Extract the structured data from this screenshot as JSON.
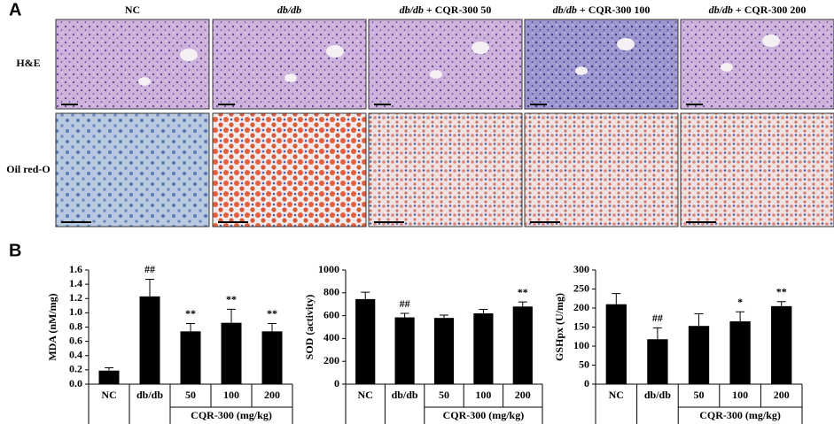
{
  "panels": {
    "a": "A",
    "b": "B"
  },
  "histology": {
    "columns": [
      [
        {
          "text": "NC",
          "italic": false
        }
      ],
      [
        {
          "text": "db/db",
          "italic": true
        }
      ],
      [
        {
          "text": "db/db",
          "italic": true
        },
        {
          "text": " + CQR-300 50",
          "italic": false
        }
      ],
      [
        {
          "text": "db/db",
          "italic": true
        },
        {
          "text": " + CQR-300 100",
          "italic": false
        }
      ],
      [
        {
          "text": "db/db",
          "italic": true
        },
        {
          "text": " + CQR-300 200",
          "italic": false
        }
      ]
    ],
    "rows": [
      "H&E",
      "Oil red-O"
    ]
  },
  "chart_data": [
    {
      "type": "bar",
      "y_label": "MDA (nM/mg)",
      "categories": [
        "NC",
        "db/db",
        "50",
        "100",
        "200"
      ],
      "group_label": "CQR-300 (mg/kg)",
      "values": [
        0.19,
        1.23,
        0.74,
        0.86,
        0.74
      ],
      "errors": [
        0.04,
        0.24,
        0.11,
        0.19,
        0.11
      ],
      "annotations": [
        null,
        "##",
        "**",
        "**",
        "**"
      ],
      "color": "#000000",
      "ylim": [
        0,
        1.6
      ],
      "yticks": [
        {
          "value": 0,
          "label": "0.0"
        },
        0.2,
        0.4,
        0.6,
        0.8,
        {
          "value": 1,
          "label": "1.0"
        },
        1.2,
        1.4,
        1.6
      ]
    },
    {
      "type": "bar",
      "y_label": "SOD (activity)",
      "categories": [
        "NC",
        "db/db",
        "50",
        "100",
        "200"
      ],
      "group_label": "CQR-300 (mg/kg)",
      "values": [
        745,
        585,
        580,
        620,
        680
      ],
      "errors": [
        60,
        35,
        25,
        35,
        40
      ],
      "annotations": [
        null,
        "##",
        null,
        null,
        "**"
      ],
      "color": "#000000",
      "ylim": [
        0,
        1000
      ],
      "yticks": [
        0,
        200,
        400,
        600,
        800,
        1000
      ]
    },
    {
      "type": "bar",
      "y_label": "GSHpx (U/mg)",
      "categories": [
        "NC",
        "db/db",
        "50",
        "100",
        "200"
      ],
      "group_label": "CQR-300 (mg/kg)",
      "values": [
        210,
        118,
        153,
        165,
        205
      ],
      "errors": [
        28,
        30,
        32,
        25,
        12
      ],
      "annotations": [
        null,
        "##",
        null,
        "*",
        "**"
      ],
      "color": "#000000",
      "ylim": [
        0,
        300
      ],
      "yticks": [
        0,
        50,
        100,
        150,
        200,
        250,
        300
      ]
    }
  ]
}
